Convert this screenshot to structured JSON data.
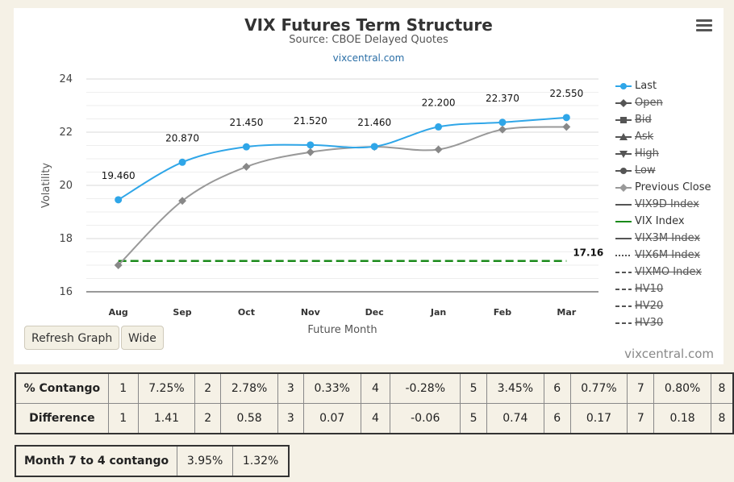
{
  "chart": {
    "title": "VIX Futures Term Structure",
    "subtitle": "Source: CBOE Delayed Quotes",
    "link": "vixcentral.com",
    "credit": "vixcentral.com",
    "buttons": {
      "refresh": "Refresh Graph",
      "wide": "Wide"
    }
  },
  "legend": [
    {
      "label": "Last",
      "hidden": false,
      "marker": "circle",
      "color": "#2fa6e8"
    },
    {
      "label": "Open",
      "hidden": true,
      "marker": "diamond",
      "color": "#555555"
    },
    {
      "label": "Bid",
      "hidden": true,
      "marker": "square",
      "color": "#555555"
    },
    {
      "label": "Ask",
      "hidden": true,
      "marker": "triangle",
      "color": "#555555"
    },
    {
      "label": "High",
      "hidden": true,
      "marker": "triangle-down",
      "color": "#555555"
    },
    {
      "label": "Low",
      "hidden": true,
      "marker": "circle",
      "color": "#555555"
    },
    {
      "label": "Previous Close",
      "hidden": false,
      "marker": "diamond",
      "color": "#999999"
    },
    {
      "label": "VIX9D Index",
      "hidden": true,
      "marker": "line",
      "color": "#555555"
    },
    {
      "label": "VIX Index",
      "hidden": false,
      "marker": "line",
      "color": "#1a8a1a"
    },
    {
      "label": "VIX3M Index",
      "hidden": true,
      "marker": "line",
      "color": "#555555"
    },
    {
      "label": "VIX6M Index",
      "hidden": true,
      "marker": "dot",
      "color": "#555555"
    },
    {
      "label": "VIXMO Index",
      "hidden": true,
      "marker": "dash",
      "color": "#555555"
    },
    {
      "label": "HV10",
      "hidden": true,
      "marker": "dash",
      "color": "#555555"
    },
    {
      "label": "HV20",
      "hidden": true,
      "marker": "dash",
      "color": "#555555"
    },
    {
      "label": "HV30",
      "hidden": true,
      "marker": "dash",
      "color": "#555555"
    }
  ],
  "chart_data": {
    "type": "line",
    "title": "VIX Futures Term Structure",
    "subtitle": "Source: CBOE Delayed Quotes",
    "xlabel": "Future Month",
    "ylabel": "Volatility",
    "categories": [
      "Aug",
      "Sep",
      "Oct",
      "Nov",
      "Dec",
      "Jan",
      "Feb",
      "Mar"
    ],
    "ylim": [
      16,
      24
    ],
    "yticks": [
      16,
      18,
      20,
      22,
      24
    ],
    "grid": true,
    "legend_position": "right",
    "series": [
      {
        "name": "Last",
        "color": "#2fa6e8",
        "values": [
          19.46,
          20.87,
          21.45,
          21.52,
          21.46,
          22.2,
          22.37,
          22.55
        ],
        "labels": [
          "19.460",
          "20.870",
          "21.450",
          "21.520",
          "21.460",
          "22.200",
          "22.370",
          "22.550"
        ]
      },
      {
        "name": "Previous Close",
        "color": "#999999",
        "values": [
          17.0,
          19.42,
          20.7,
          21.25,
          21.45,
          21.35,
          22.1,
          22.2
        ]
      },
      {
        "name": "VIX Index",
        "color": "#1a8a1a",
        "dashed": true,
        "values": [
          17.16,
          17.16,
          17.16,
          17.16,
          17.16,
          17.16,
          17.16,
          17.16
        ],
        "end_label": "17.16"
      }
    ]
  },
  "contango": {
    "rows": [
      {
        "label": "% Contango",
        "cells": [
          "1",
          "7.25%",
          "2",
          "2.78%",
          "3",
          "0.33%",
          "4",
          "-0.28%",
          "5",
          "3.45%",
          "6",
          "0.77%",
          "7",
          "0.80%",
          "8"
        ]
      },
      {
        "label": "Difference",
        "cells": [
          "1",
          "1.41",
          "2",
          "0.58",
          "3",
          "0.07",
          "4",
          "-0.06",
          "5",
          "0.74",
          "6",
          "0.17",
          "7",
          "0.18",
          "8"
        ]
      }
    ]
  },
  "summary": {
    "label": "Month 7 to 4 contango",
    "values": [
      "3.95%",
      "1.32%"
    ]
  }
}
